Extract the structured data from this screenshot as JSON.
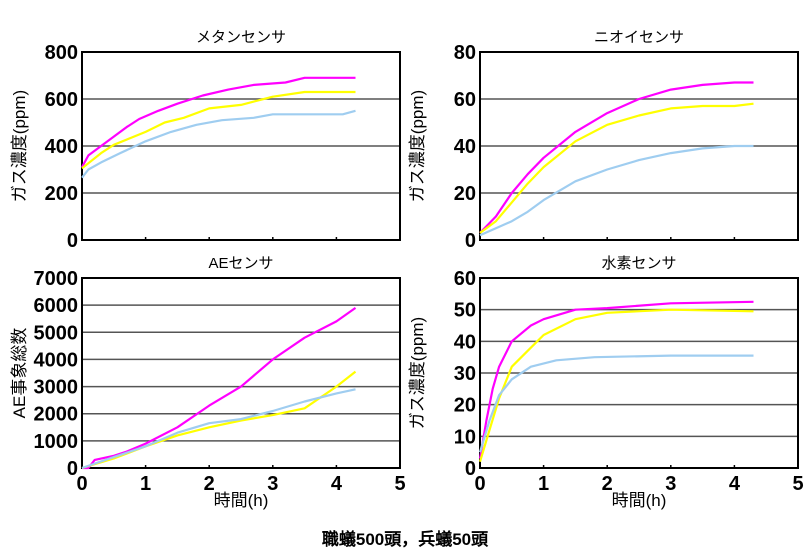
{
  "caption": "職蟻500頭，兵蟻50頭",
  "series_colors": {
    "magenta": "#ff00ff",
    "yellow": "#ffff00",
    "blue": "#9fcdf0"
  },
  "chart_data": [
    {
      "type": "line",
      "title": "メタンセンサ",
      "xlabel": "",
      "ylabel": "ガス濃度(ppm)",
      "xlim": [
        0,
        5
      ],
      "ylim": [
        0,
        800
      ],
      "xticks": [
        0,
        1,
        2,
        3,
        4,
        5
      ],
      "xtick_labels_shown": false,
      "yticks": [
        "0",
        "200",
        "400",
        "600",
        "800"
      ],
      "grid": true,
      "series": [
        {
          "name": "magenta",
          "x": [
            0,
            0.1,
            0.3,
            0.5,
            0.7,
            0.9,
            1.2,
            1.5,
            1.9,
            2.3,
            2.7,
            3.2,
            3.5,
            4.3
          ],
          "y": [
            310,
            360,
            400,
            440,
            480,
            515,
            550,
            580,
            615,
            640,
            660,
            670,
            690,
            690
          ]
        },
        {
          "name": "yellow",
          "x": [
            0,
            0.3,
            0.5,
            1,
            1.3,
            1.6,
            2,
            2.5,
            3,
            3.5,
            4.3
          ],
          "y": [
            305,
            370,
            405,
            460,
            500,
            520,
            560,
            575,
            610,
            630,
            630
          ]
        },
        {
          "name": "blue",
          "x": [
            0,
            0.1,
            0.3,
            0.6,
            1,
            1.4,
            1.8,
            2.2,
            2.7,
            3,
            4.1,
            4.3
          ],
          "y": [
            265,
            300,
            330,
            370,
            420,
            460,
            490,
            510,
            520,
            535,
            535,
            550
          ]
        }
      ]
    },
    {
      "type": "line",
      "title": "ニオイセンサ",
      "xlabel": "",
      "ylabel": "ガス濃度(ppm)",
      "xlim": [
        0,
        5
      ],
      "ylim": [
        0,
        80
      ],
      "xticks": [
        0,
        1,
        2,
        3,
        4,
        5
      ],
      "xtick_labels_shown": false,
      "yticks": [
        "0",
        "20",
        "40",
        "60",
        "80"
      ],
      "grid": true,
      "series": [
        {
          "name": "magenta",
          "x": [
            0,
            0.25,
            0.5,
            0.75,
            1,
            1.5,
            2,
            2.5,
            3,
            3.5,
            4,
            4.3
          ],
          "y": [
            3,
            10,
            20,
            28,
            35,
            46,
            54,
            60,
            64,
            66,
            67,
            67
          ]
        },
        {
          "name": "yellow",
          "x": [
            0,
            0.25,
            0.5,
            0.75,
            1,
            1.5,
            2,
            2.5,
            3,
            3.5,
            4,
            4.3
          ],
          "y": [
            3,
            8,
            16,
            24,
            31,
            42,
            49,
            53,
            56,
            57,
            57,
            58
          ]
        },
        {
          "name": "blue",
          "x": [
            0,
            0.25,
            0.5,
            0.75,
            1,
            1.5,
            2,
            2.5,
            3,
            3.5,
            4,
            4.3
          ],
          "y": [
            2,
            5,
            8,
            12,
            17,
            25,
            30,
            34,
            37,
            39,
            40,
            40
          ]
        }
      ]
    },
    {
      "type": "line",
      "title": "AEセンサ",
      "xlabel": "時間(h)",
      "ylabel": "AE事象総数",
      "xlim": [
        0,
        5
      ],
      "ylim": [
        0,
        7000
      ],
      "xticks": [
        0,
        1,
        2,
        3,
        4,
        5
      ],
      "xtick_labels_shown": true,
      "yticks": [
        "0",
        "1000",
        "2000",
        "3000",
        "4000",
        "5000",
        "6000",
        "7000"
      ],
      "grid": true,
      "series": [
        {
          "name": "magenta",
          "x": [
            0,
            0.1,
            0.2,
            0.5,
            0.7,
            1,
            1.5,
            2,
            2.5,
            3,
            3.5,
            4,
            4.3
          ],
          "y": [
            0,
            0,
            300,
            450,
            600,
            900,
            1500,
            2300,
            3000,
            4000,
            4800,
            5400,
            5900
          ]
        },
        {
          "name": "yellow",
          "x": [
            0,
            0.5,
            1,
            1.5,
            2,
            2.5,
            3,
            3.5,
            4,
            4.3
          ],
          "y": [
            0,
            350,
            800,
            1200,
            1500,
            1750,
            1950,
            2200,
            3000,
            3550
          ]
        },
        {
          "name": "blue",
          "x": [
            0,
            0.5,
            1,
            1.5,
            2,
            2.5,
            3,
            3.5,
            4,
            4.3
          ],
          "y": [
            0,
            400,
            800,
            1300,
            1650,
            1800,
            2100,
            2450,
            2750,
            2900
          ]
        }
      ]
    },
    {
      "type": "line",
      "title": "水素センサ",
      "xlabel": "時間(h)",
      "ylabel": "ガス濃度(ppm)",
      "xlim": [
        0,
        5
      ],
      "ylim": [
        0,
        60
      ],
      "xticks": [
        0,
        1,
        2,
        3,
        4,
        5
      ],
      "xtick_labels_shown": true,
      "yticks": [
        "0",
        "10",
        "20",
        "30",
        "40",
        "50",
        "60"
      ],
      "grid": true,
      "series": [
        {
          "name": "magenta",
          "x": [
            0,
            0.1,
            0.2,
            0.3,
            0.5,
            0.8,
            1,
            1.5,
            2,
            3,
            4.3
          ],
          "y": [
            3,
            15,
            25,
            32,
            40,
            45,
            47,
            50,
            50.5,
            52,
            52.5
          ]
        },
        {
          "name": "yellow",
          "x": [
            0,
            0.15,
            0.3,
            0.5,
            0.75,
            1,
            1.5,
            2,
            3,
            4.3
          ],
          "y": [
            2,
            12,
            22,
            32,
            37,
            42,
            47,
            49,
            50,
            49.5
          ]
        },
        {
          "name": "blue",
          "x": [
            0,
            0.15,
            0.3,
            0.5,
            0.8,
            1.2,
            1.8,
            3,
            4.3
          ],
          "y": [
            5,
            15,
            23,
            28,
            32,
            34,
            35,
            35.5,
            35.5
          ]
        }
      ]
    }
  ]
}
